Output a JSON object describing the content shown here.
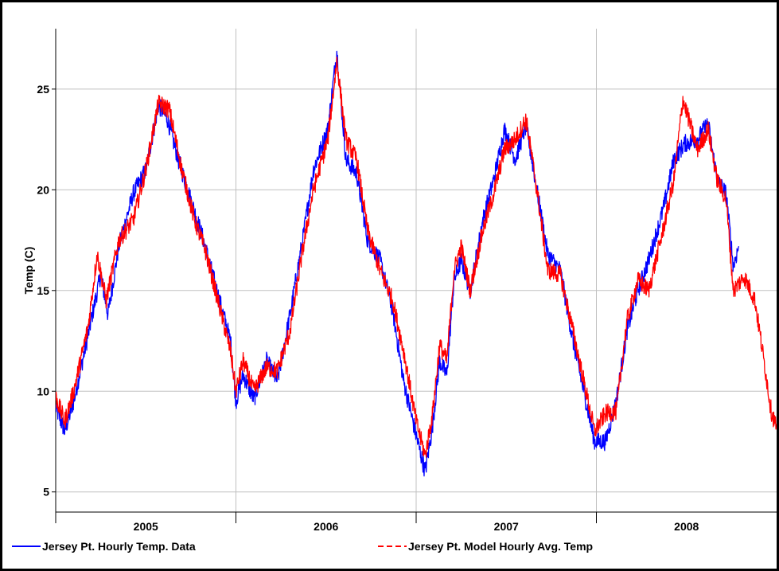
{
  "chart_data": {
    "type": "line",
    "title": "",
    "xlabel": "",
    "ylabel": "Temp (C)",
    "x_range": [
      2004.9,
      2008.9
    ],
    "ylim": [
      4,
      28
    ],
    "yticks": [
      5,
      10,
      15,
      20,
      25
    ],
    "xticks": [
      {
        "label": "2005",
        "center": 2005.4
      },
      {
        "label": "2006",
        "center": 2006.4
      },
      {
        "label": "2007",
        "center": 2007.4
      },
      {
        "label": "2008",
        "center": 2008.4
      }
    ],
    "year_dividers": [
      2004.9,
      2005.9,
      2006.9,
      2007.9
    ],
    "grid": true,
    "legend_position": "bottom",
    "series": [
      {
        "name": "Jersey Pt. Hourly Temp. Data",
        "color": "#0000ff",
        "dash": "solid",
        "points": [
          [
            2004.9,
            9.2
          ],
          [
            2004.95,
            8.0
          ],
          [
            2005.0,
            9.5
          ],
          [
            2005.08,
            12.8
          ],
          [
            2005.15,
            15.8
          ],
          [
            2005.19,
            13.8
          ],
          [
            2005.25,
            17.2
          ],
          [
            2005.33,
            19.8
          ],
          [
            2005.4,
            21.0
          ],
          [
            2005.47,
            24.2
          ],
          [
            2005.52,
            23.5
          ],
          [
            2005.58,
            21.5
          ],
          [
            2005.65,
            19.5
          ],
          [
            2005.72,
            17.5
          ],
          [
            2005.8,
            14.8
          ],
          [
            2005.87,
            12.5
          ],
          [
            2005.9,
            9.5
          ],
          [
            2005.94,
            10.8
          ],
          [
            2006.0,
            9.6
          ],
          [
            2006.07,
            11.5
          ],
          [
            2006.13,
            10.5
          ],
          [
            2006.2,
            13.8
          ],
          [
            2006.27,
            17.5
          ],
          [
            2006.33,
            21.0
          ],
          [
            2006.41,
            23.0
          ],
          [
            2006.46,
            26.9
          ],
          [
            2006.51,
            21.5
          ],
          [
            2006.57,
            20.8
          ],
          [
            2006.63,
            17.5
          ],
          [
            2006.7,
            16.5
          ],
          [
            2006.77,
            14.0
          ],
          [
            2006.83,
            10.5
          ],
          [
            2006.9,
            7.8
          ],
          [
            2006.95,
            6.0
          ],
          [
            2006.99,
            8.2
          ],
          [
            2007.03,
            11.5
          ],
          [
            2007.07,
            10.8
          ],
          [
            2007.11,
            15.5
          ],
          [
            2007.15,
            16.5
          ],
          [
            2007.2,
            15.0
          ],
          [
            2007.27,
            18.5
          ],
          [
            2007.33,
            20.5
          ],
          [
            2007.39,
            23.0
          ],
          [
            2007.45,
            21.5
          ],
          [
            2007.51,
            23.2
          ],
          [
            2007.57,
            20.0
          ],
          [
            2007.63,
            16.8
          ],
          [
            2007.7,
            16.0
          ],
          [
            2007.77,
            12.5
          ],
          [
            2007.83,
            10.0
          ],
          [
            2007.89,
            7.5
          ],
          [
            2007.95,
            7.5
          ],
          [
            2008.01,
            9.5
          ],
          [
            2008.07,
            13.0
          ],
          [
            2008.13,
            15.0
          ],
          [
            2008.19,
            16.5
          ],
          [
            2008.27,
            19.0
          ],
          [
            2008.33,
            21.5
          ],
          [
            2008.39,
            22.3
          ],
          [
            2008.46,
            22.5
          ],
          [
            2008.52,
            23.3
          ],
          [
            2008.57,
            20.5
          ],
          [
            2008.62,
            19.8
          ],
          [
            2008.66,
            16.2
          ],
          [
            2008.69,
            17.2
          ]
        ]
      },
      {
        "name": "Jersey Pt. Model Hourly Avg. Temp",
        "color": "#ff0000",
        "dash": "dashed",
        "points": [
          [
            2004.9,
            9.7
          ],
          [
            2004.95,
            8.5
          ],
          [
            2005.0,
            10.0
          ],
          [
            2005.08,
            13.2
          ],
          [
            2005.13,
            16.8
          ],
          [
            2005.18,
            14.5
          ],
          [
            2005.25,
            17.5
          ],
          [
            2005.33,
            18.5
          ],
          [
            2005.4,
            21.0
          ],
          [
            2005.47,
            24.3
          ],
          [
            2005.53,
            24.0
          ],
          [
            2005.6,
            21.0
          ],
          [
            2005.67,
            18.5
          ],
          [
            2005.73,
            17.0
          ],
          [
            2005.8,
            14.5
          ],
          [
            2005.87,
            12.0
          ],
          [
            2005.9,
            10.0
          ],
          [
            2005.94,
            11.5
          ],
          [
            2006.0,
            10.0
          ],
          [
            2006.07,
            11.2
          ],
          [
            2006.13,
            11.0
          ],
          [
            2006.2,
            13.0
          ],
          [
            2006.27,
            17.0
          ],
          [
            2006.33,
            20.0
          ],
          [
            2006.41,
            22.5
          ],
          [
            2006.46,
            26.4
          ],
          [
            2006.51,
            22.5
          ],
          [
            2006.57,
            21.5
          ],
          [
            2006.63,
            18.0
          ],
          [
            2006.7,
            16.0
          ],
          [
            2006.77,
            14.5
          ],
          [
            2006.83,
            12.0
          ],
          [
            2006.9,
            8.5
          ],
          [
            2006.95,
            6.8
          ],
          [
            2006.99,
            8.8
          ],
          [
            2007.03,
            12.3
          ],
          [
            2007.07,
            11.5
          ],
          [
            2007.11,
            16.0
          ],
          [
            2007.15,
            17.2
          ],
          [
            2007.2,
            15.0
          ],
          [
            2007.27,
            18.0
          ],
          [
            2007.33,
            19.8
          ],
          [
            2007.39,
            22.0
          ],
          [
            2007.45,
            22.5
          ],
          [
            2007.51,
            23.5
          ],
          [
            2007.57,
            20.0
          ],
          [
            2007.63,
            16.0
          ],
          [
            2007.7,
            15.8
          ],
          [
            2007.77,
            13.0
          ],
          [
            2007.83,
            10.5
          ],
          [
            2007.89,
            8.0
          ],
          [
            2007.95,
            8.9
          ],
          [
            2008.01,
            9.0
          ],
          [
            2008.07,
            13.5
          ],
          [
            2008.13,
            15.5
          ],
          [
            2008.19,
            15.0
          ],
          [
            2008.27,
            18.0
          ],
          [
            2008.33,
            20.5
          ],
          [
            2008.38,
            24.5
          ],
          [
            2008.46,
            22.0
          ],
          [
            2008.52,
            23.0
          ],
          [
            2008.57,
            20.5
          ],
          [
            2008.62,
            19.5
          ],
          [
            2008.66,
            15.0
          ],
          [
            2008.72,
            15.7
          ],
          [
            2008.78,
            14.5
          ],
          [
            2008.83,
            11.5
          ],
          [
            2008.87,
            9.0
          ],
          [
            2008.9,
            8.2
          ]
        ]
      }
    ]
  }
}
